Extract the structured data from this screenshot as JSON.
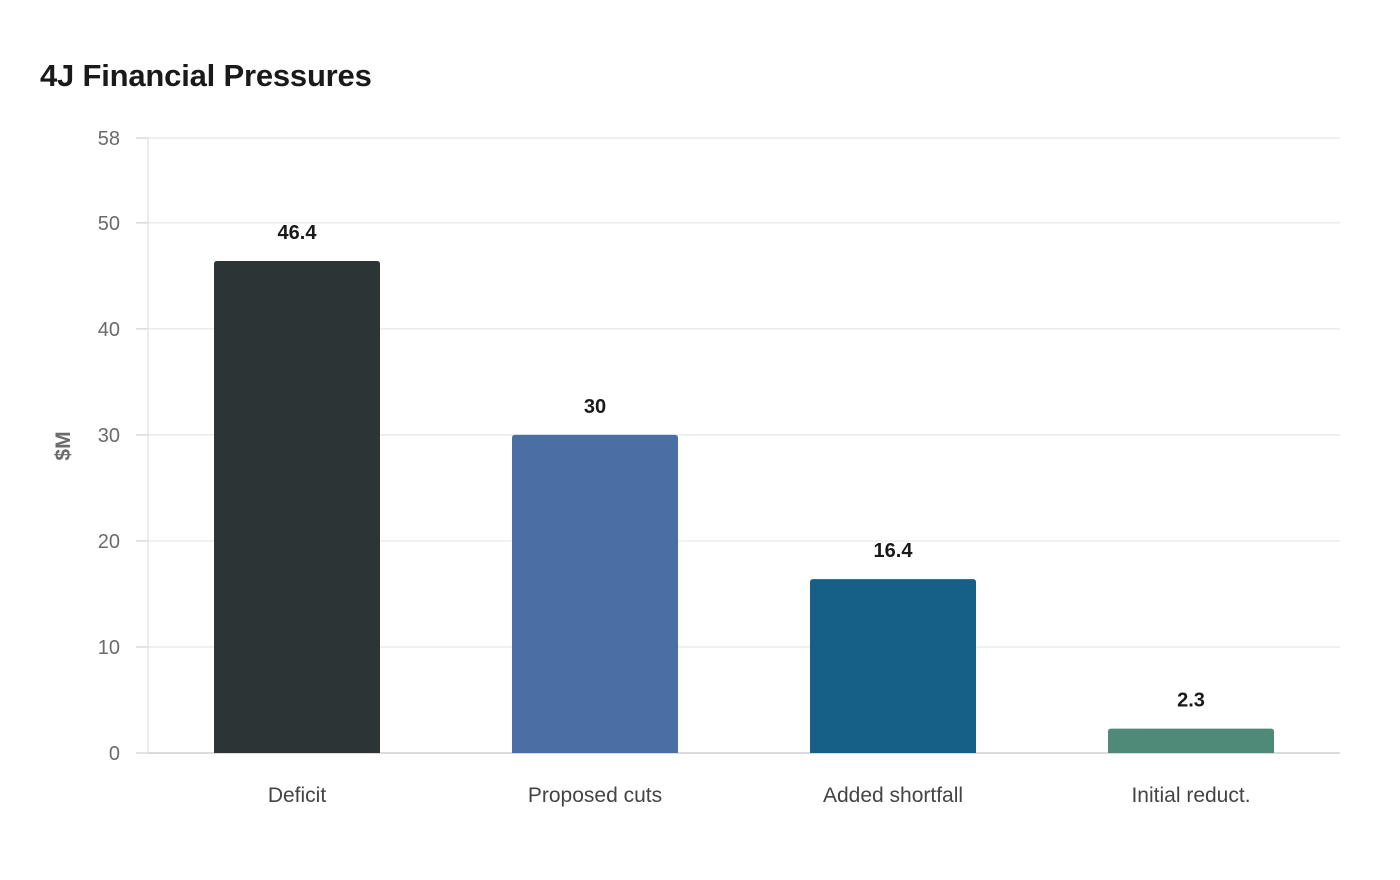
{
  "chart_data": {
    "type": "bar",
    "title": "4J Financial Pressures",
    "xlabel": "",
    "ylabel": "$M",
    "categories": [
      "Deficit",
      "Proposed cuts",
      "Added shortfall",
      "Initial reduct."
    ],
    "values": [
      46.4,
      30,
      16.4,
      2.3
    ],
    "data_labels": [
      "46.4",
      "30",
      "16.4",
      "2.3"
    ],
    "colors": [
      "#2d3436",
      "#4a6fa5",
      "#166088",
      "#4f8a78"
    ],
    "ylim": [
      0,
      58
    ],
    "yticks": [
      0,
      10,
      20,
      30,
      40,
      50,
      58
    ],
    "grid": true,
    "legend": "none"
  }
}
